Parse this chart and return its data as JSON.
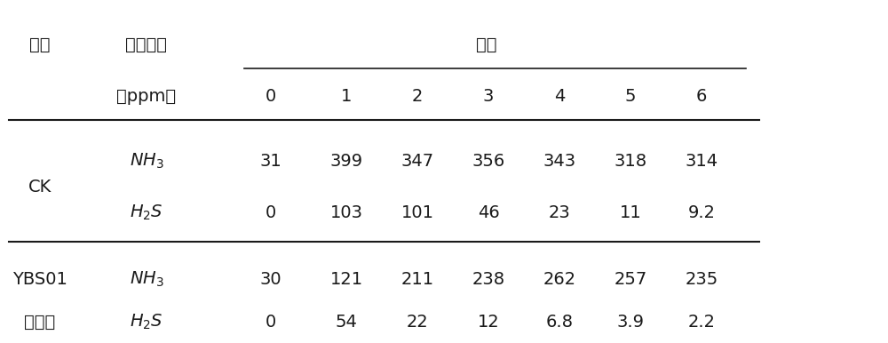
{
  "col_header_row1_left": [
    "处理",
    "气体种类"
  ],
  "col_header_tianshu": "天数",
  "col_header_ppm": "（ppm）",
  "day_labels": [
    "0",
    "1",
    "2",
    "3",
    "4",
    "5",
    "6"
  ],
  "ck_label": "CK",
  "ck_nh3": [
    "31",
    "399",
    "347",
    "356",
    "343",
    "318",
    "314"
  ],
  "ck_h2s": [
    "0",
    "103",
    "101",
    "46",
    "23",
    "11",
    "9.2"
  ],
  "ybs_label": "YBS01",
  "cly_label": "处理组",
  "ybs_nh3": [
    "30",
    "121",
    "211",
    "238",
    "262",
    "257",
    "235"
  ],
  "ybs_h2s": [
    "0",
    "54",
    "22",
    "12",
    "6.8",
    "3.9",
    "2.2"
  ],
  "bg_color": "#ffffff",
  "text_color": "#1a1a1a",
  "font_size": 14
}
